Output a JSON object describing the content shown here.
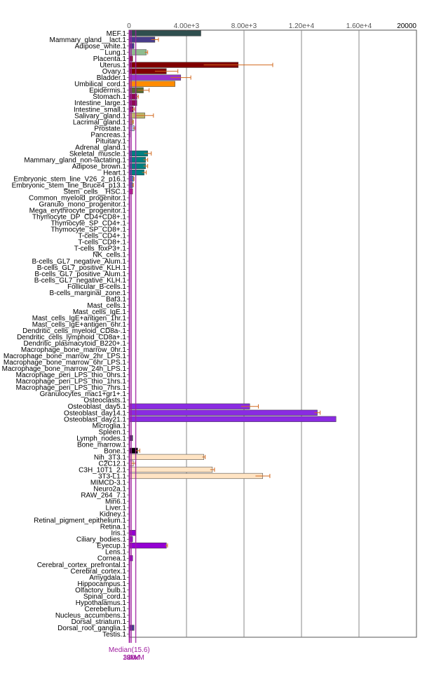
{
  "chart_data": {
    "type": "bar",
    "orientation": "horizontal",
    "xlim": [
      0,
      20000
    ],
    "x_ticks": [
      {
        "value": 0,
        "label": "0"
      },
      {
        "value": 4000,
        "label": "4.00e+3"
      },
      {
        "value": 8000,
        "label": "8.00e+3"
      },
      {
        "value": 12000,
        "label": "1.20e+4"
      },
      {
        "value": 16000,
        "label": "1.60e+4"
      },
      {
        "value": 20000,
        "label": "20000"
      }
    ],
    "grid": true,
    "reference_lines": [
      {
        "label": "Median(15.6)",
        "value": 15.6,
        "color": "#a020a0"
      },
      {
        "label": "3xM",
        "value": 46.8,
        "color": "#a020a0"
      },
      {
        "label": "10xM",
        "value": 156,
        "color": "#a020a0"
      },
      {
        "label": "30xM",
        "value": 468,
        "color": "#a020a0"
      }
    ],
    "categories": [
      {
        "label": "MEF.1",
        "value": 5000,
        "err": 0,
        "color": "#2f4f4f"
      },
      {
        "label": "Mammary_gland__lact.1",
        "value": 1800,
        "err": 250,
        "color": "#483d8b"
      },
      {
        "label": "Adipose_white.1",
        "value": 350,
        "err": 0,
        "color": "#483d8b"
      },
      {
        "label": "Lung.1",
        "value": 1200,
        "err": 100,
        "color": "#8fbc8f"
      },
      {
        "label": "Placenta.1",
        "value": 250,
        "err": 0,
        "color": "#800000"
      },
      {
        "label": "Uterus.1",
        "value": 7600,
        "err": 2400,
        "color": "#800000"
      },
      {
        "label": "Ovary.1",
        "value": 2600,
        "err": 800,
        "color": "#800000"
      },
      {
        "label": "Bladder.1",
        "value": 3600,
        "err": 700,
        "color": "#9932cc"
      },
      {
        "label": "Umbilical_cord.1",
        "value": 3200,
        "err": 0,
        "color": "#ff8c00"
      },
      {
        "label": "Epidermis.1",
        "value": 1000,
        "err": 400,
        "color": "#556b2f"
      },
      {
        "label": "Stomach.1",
        "value": 550,
        "err": 100,
        "color": "#8b0a50"
      },
      {
        "label": "Intestine_large.1",
        "value": 550,
        "err": 0,
        "color": "#8b0a50"
      },
      {
        "label": "Intestine_small.1",
        "value": 300,
        "err": 100,
        "color": "#8b0a50"
      },
      {
        "label": "Salivary_gland.1",
        "value": 1100,
        "err": 600,
        "color": "#bdb76b"
      },
      {
        "label": "Lacrimal_gland.1",
        "value": 250,
        "err": 50,
        "color": "#bdb76b"
      },
      {
        "label": "Prostate.1",
        "value": 350,
        "err": 80,
        "color": "#b0c4de"
      },
      {
        "label": "Pancreas.1",
        "value": 80,
        "err": 0,
        "color": "#b0c4de"
      },
      {
        "label": "Pituitary.1",
        "value": 40,
        "err": 0,
        "color": "#b0c4de"
      },
      {
        "label": "Adrenal_gland.1",
        "value": 40,
        "err": 0,
        "color": "#b0c4de"
      },
      {
        "label": "Skeletal_muscle.1",
        "value": 1300,
        "err": 250,
        "color": "#008080"
      },
      {
        "label": "Mammary_gland_non-lactating.1",
        "value": 1150,
        "err": 150,
        "color": "#008080"
      },
      {
        "label": "Adipose_brown.1",
        "value": 1150,
        "err": 150,
        "color": "#008080"
      },
      {
        "label": "Heart.1",
        "value": 1050,
        "err": 150,
        "color": "#008080"
      },
      {
        "label": "Embryonic_stem_line_V26_2_p16.1",
        "value": 300,
        "err": 50,
        "color": "#4682b4"
      },
      {
        "label": "Embryonic_stem_line_Bruce4_p13.1",
        "value": 250,
        "err": 50,
        "color": "#4682b4"
      },
      {
        "label": "Stem_cells__HSC.1",
        "value": 250,
        "err": 0,
        "color": "#c71585"
      },
      {
        "label": "Common_myeloid_progenitor.1",
        "value": 30,
        "err": 0,
        "color": "#c71585"
      },
      {
        "label": "Granulo_mono_progenitor.1",
        "value": 30,
        "err": 0,
        "color": "#c71585"
      },
      {
        "label": "Mega_erythrocyte_progenitor.1",
        "value": 30,
        "err": 0,
        "color": "#c71585"
      },
      {
        "label": "Thymocyte_DP_CD4+CD8+.1",
        "value": 30,
        "err": 0,
        "color": "#c71585"
      },
      {
        "label": "Thymocyte_SP_CD4+.1",
        "value": 30,
        "err": 0,
        "color": "#c71585"
      },
      {
        "label": "Thymocyte_SP_CD8+.1",
        "value": 30,
        "err": 0,
        "color": "#c71585"
      },
      {
        "label": "T-cells_CD4+.1",
        "value": 30,
        "err": 0,
        "color": "#c71585"
      },
      {
        "label": "T-cells_CD8+.1",
        "value": 30,
        "err": 0,
        "color": "#c71585"
      },
      {
        "label": "T-cells_foxP3+.1",
        "value": 30,
        "err": 0,
        "color": "#c71585"
      },
      {
        "label": "NK_cells.1",
        "value": 30,
        "err": 0,
        "color": "#c71585"
      },
      {
        "label": "B-cells_GL7_negative_Alum.1",
        "value": 30,
        "err": 0,
        "color": "#c71585"
      },
      {
        "label": "B-cells_GL7_positive_KLH.1",
        "value": 30,
        "err": 0,
        "color": "#c71585"
      },
      {
        "label": "B-cells_GL7_positive_Alum.1",
        "value": 30,
        "err": 0,
        "color": "#c71585"
      },
      {
        "label": "B-cells_GL7_negative_KLH.1",
        "value": 30,
        "err": 0,
        "color": "#c71585"
      },
      {
        "label": "Follicular_B-cells.1",
        "value": 30,
        "err": 0,
        "color": "#c71585"
      },
      {
        "label": "B-cells_marginal_zone.1",
        "value": 30,
        "err": 0,
        "color": "#c71585"
      },
      {
        "label": "Baf3.1",
        "value": 30,
        "err": 0,
        "color": "#c71585"
      },
      {
        "label": "Mast_cells.1",
        "value": 30,
        "err": 0,
        "color": "#c71585"
      },
      {
        "label": "Mast_cells_IgE.1",
        "value": 30,
        "err": 0,
        "color": "#c71585"
      },
      {
        "label": "Mast_cells_IgE+antigen_1hr.1",
        "value": 30,
        "err": 0,
        "color": "#c71585"
      },
      {
        "label": "Mast_cells_IgE+antigen_6hr.1",
        "value": 30,
        "err": 0,
        "color": "#c71585"
      },
      {
        "label": "Dendritic_cells_myeloid_CD8a-.1",
        "value": 30,
        "err": 0,
        "color": "#c71585"
      },
      {
        "label": "Dendritic_cells_lymphoid_CD8a+.1",
        "value": 30,
        "err": 0,
        "color": "#c71585"
      },
      {
        "label": "Dendritic_plasmacytoid_B220+.1",
        "value": 30,
        "err": 0,
        "color": "#c71585"
      },
      {
        "label": "Macrophage_bone_marrow_0hr.1",
        "value": 30,
        "err": 0,
        "color": "#c71585"
      },
      {
        "label": "Macrophage_bone_marrow_2hr_LPS.1",
        "value": 30,
        "err": 0,
        "color": "#c71585"
      },
      {
        "label": "Macrophage_bone_marrow_6hr_LPS.1",
        "value": 30,
        "err": 0,
        "color": "#c71585"
      },
      {
        "label": "Macrophage_bone_marrow_24h_LPS.1",
        "value": 30,
        "err": 0,
        "color": "#c71585"
      },
      {
        "label": "Macrophage_peri_LPS_thio_0hrs.1",
        "value": 30,
        "err": 0,
        "color": "#c71585"
      },
      {
        "label": "Macrophage_peri_LPS_thio_1hrs.1",
        "value": 30,
        "err": 0,
        "color": "#c71585"
      },
      {
        "label": "Macrophage_peri_LPS_thio_7hrs.1",
        "value": 30,
        "err": 0,
        "color": "#c71585"
      },
      {
        "label": "Granulocytes_mac1+gr1+.1",
        "value": 30,
        "err": 0,
        "color": "#c71585"
      },
      {
        "label": "Osteoclasts.1",
        "value": 30,
        "err": 0,
        "color": "#c71585"
      },
      {
        "label": "Osteoblast_day5.1",
        "value": 8400,
        "err": 600,
        "color": "#8a2be2"
      },
      {
        "label": "Osteoblast_day14.1",
        "value": 13100,
        "err": 200,
        "color": "#8a2be2"
      },
      {
        "label": "Osteoblast_day21.1",
        "value": 14400,
        "err": 0,
        "color": "#8a2be2"
      },
      {
        "label": "Microglia.1",
        "value": 60,
        "err": 0,
        "color": "#c71585"
      },
      {
        "label": "Spleen.1",
        "value": 60,
        "err": 0,
        "color": "#c71585"
      },
      {
        "label": "Lymph_nodes.1",
        "value": 250,
        "err": 0,
        "color": "#2f2f4f"
      },
      {
        "label": "Bone_marrow.1",
        "value": 60,
        "err": 0,
        "color": "#c71585"
      },
      {
        "label": "Bone.1",
        "value": 600,
        "err": 150,
        "color": "#000000"
      },
      {
        "label": "Nih_3T3.1",
        "value": 5200,
        "err": 100,
        "color": "#ffe4c4"
      },
      {
        "label": "C2C12.1",
        "value": 300,
        "err": 150,
        "color": "#ffe4c4"
      },
      {
        "label": "C3H_10T1_2.1",
        "value": 5800,
        "err": 150,
        "color": "#ffe4c4"
      },
      {
        "label": "3T3-L1.1",
        "value": 9300,
        "err": 500,
        "color": "#ffe4c4"
      },
      {
        "label": "MIMCD-3.1",
        "value": 30,
        "err": 0,
        "color": "#ffe4c4"
      },
      {
        "label": "Neuro2a.1",
        "value": 30,
        "err": 0,
        "color": "#ffe4c4"
      },
      {
        "label": "RAW_264_7.1",
        "value": 30,
        "err": 0,
        "color": "#ffe4c4"
      },
      {
        "label": "Min6.1",
        "value": 30,
        "err": 0,
        "color": "#ffe4c4"
      },
      {
        "label": "Liver.1",
        "value": 30,
        "err": 0,
        "color": "#c71585"
      },
      {
        "label": "Kidney.1",
        "value": 30,
        "err": 0,
        "color": "#c71585"
      },
      {
        "label": "Retinal_pigment_epithelium.1",
        "value": 30,
        "err": 0,
        "color": "#9400d3"
      },
      {
        "label": "Retina.1",
        "value": 30,
        "err": 0,
        "color": "#9400d3"
      },
      {
        "label": "Iris.1",
        "value": 450,
        "err": 0,
        "color": "#9400d3"
      },
      {
        "label": "Ciliary_bodies.1",
        "value": 250,
        "err": 0,
        "color": "#9400d3"
      },
      {
        "label": "Eyecup.1",
        "value": 2600,
        "err": 80,
        "color": "#9400d3"
      },
      {
        "label": "Lens.1",
        "value": 30,
        "err": 0,
        "color": "#9400d3"
      },
      {
        "label": "Cornea.1",
        "value": 250,
        "err": 0,
        "color": "#9400d3"
      },
      {
        "label": "Cerebral_cortex_prefrontal.1",
        "value": 30,
        "err": 0,
        "color": "#c71585"
      },
      {
        "label": "Cerebral_cortex.1",
        "value": 30,
        "err": 0,
        "color": "#c71585"
      },
      {
        "label": "Amygdala.1",
        "value": 30,
        "err": 0,
        "color": "#c71585"
      },
      {
        "label": "Hippocampus.1",
        "value": 30,
        "err": 0,
        "color": "#c71585"
      },
      {
        "label": "Olfactory_bulb.1",
        "value": 30,
        "err": 0,
        "color": "#c71585"
      },
      {
        "label": "Spinal_cord.1",
        "value": 30,
        "err": 0,
        "color": "#c71585"
      },
      {
        "label": "Hypothalamus.1",
        "value": 30,
        "err": 0,
        "color": "#c71585"
      },
      {
        "label": "Cerebellum.1",
        "value": 30,
        "err": 0,
        "color": "#c71585"
      },
      {
        "label": "Nucleus_accumbens.1",
        "value": 30,
        "err": 0,
        "color": "#c71585"
      },
      {
        "label": "Dorsal_striatum.1",
        "value": 30,
        "err": 0,
        "color": "#c71585"
      },
      {
        "label": "Dorsal_root_ganglia.1",
        "value": 350,
        "err": 0,
        "color": "#483d8b"
      },
      {
        "label": "Testis.1",
        "value": 30,
        "err": 0,
        "color": "#c71585"
      }
    ]
  }
}
